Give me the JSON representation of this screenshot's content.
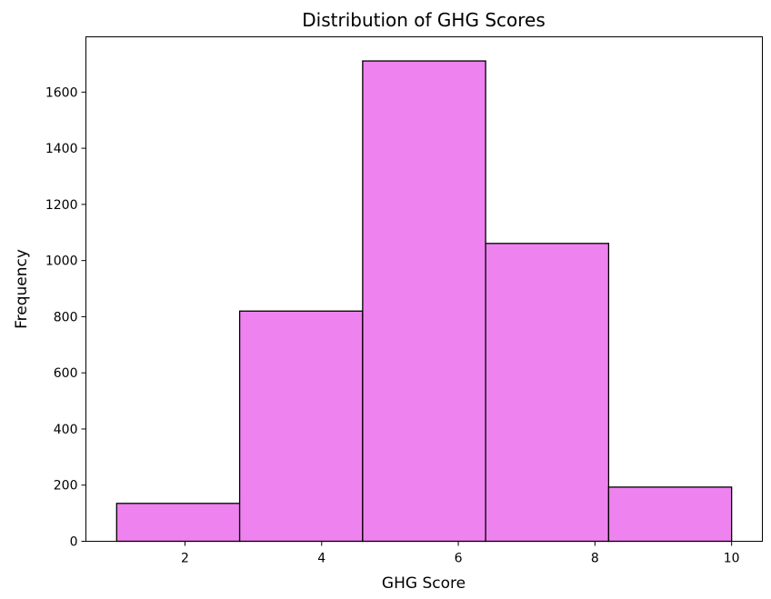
{
  "chart_data": {
    "type": "bar",
    "title": "Distribution of GHG Scores",
    "xlabel": "GHG Score",
    "ylabel": "Frequency",
    "xlim": [
      0.55,
      10.45
    ],
    "ylim": [
      0,
      1797
    ],
    "bins": [
      {
        "x0": 1.0,
        "x1": 2.8,
        "value": 135
      },
      {
        "x0": 2.8,
        "x1": 4.6,
        "value": 820
      },
      {
        "x0": 4.6,
        "x1": 6.4,
        "value": 1711
      },
      {
        "x0": 6.4,
        "x1": 8.2,
        "value": 1061
      },
      {
        "x0": 8.2,
        "x1": 10.0,
        "value": 193
      }
    ],
    "x_ticks": [
      2,
      4,
      6,
      8,
      10
    ],
    "y_ticks": [
      0,
      200,
      400,
      600,
      800,
      1000,
      1200,
      1400,
      1600
    ],
    "bar_color": "#ee82ee",
    "edge_color": "#000000",
    "grid": false
  }
}
